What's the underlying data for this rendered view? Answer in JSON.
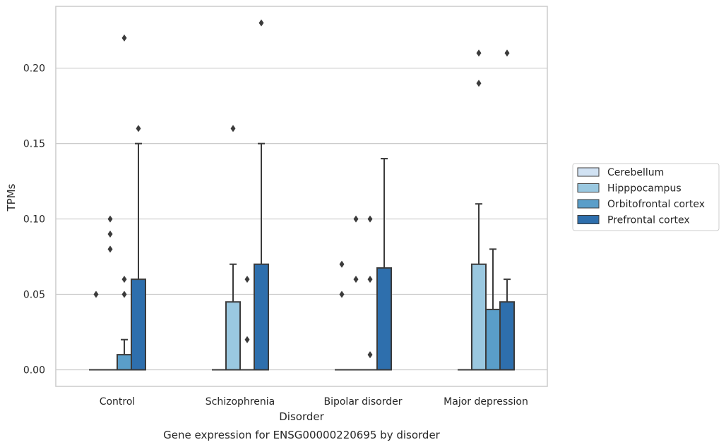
{
  "chart_data": {
    "type": "box",
    "title": "Gene expression for ENSG00000220695 by disorder",
    "xlabel": "Disorder",
    "ylabel": "TPMs",
    "ylim": [
      -0.011,
      0.241
    ],
    "yticks": [
      "0.00",
      "0.05",
      "0.10",
      "0.15",
      "0.20"
    ],
    "grid": true,
    "legend_position": "right",
    "categories": [
      "Control",
      "Schizophrenia",
      "Bipolar disorder",
      "Major depression"
    ],
    "series": [
      {
        "name": "Cerebellum",
        "color": "#d1e2f3",
        "boxes": [
          {
            "q1": 0,
            "median": 0,
            "q3": 0,
            "whisker_low": 0,
            "whisker_high": 0,
            "outliers": [
              0.05
            ]
          },
          {
            "q1": 0,
            "median": 0,
            "q3": 0,
            "whisker_low": 0,
            "whisker_high": 0,
            "outliers": []
          },
          {
            "q1": 0,
            "median": 0,
            "q3": 0,
            "whisker_low": 0,
            "whisker_high": 0,
            "outliers": [
              0.07,
              0.05
            ]
          },
          {
            "q1": 0,
            "median": 0,
            "q3": 0,
            "whisker_low": 0,
            "whisker_high": 0,
            "outliers": []
          }
        ]
      },
      {
        "name": "Hipppocampus",
        "color": "#9ac8e0",
        "boxes": [
          {
            "q1": 0,
            "median": 0,
            "q3": 0,
            "whisker_low": 0,
            "whisker_high": 0,
            "outliers": [
              0.1,
              0.09,
              0.08
            ]
          },
          {
            "q1": 0,
            "median": 0,
            "q3": 0.045,
            "whisker_low": 0,
            "whisker_high": 0.07,
            "outliers": [
              0.16
            ]
          },
          {
            "q1": 0,
            "median": 0,
            "q3": 0,
            "whisker_low": 0,
            "whisker_high": 0,
            "outliers": [
              0.1,
              0.06
            ]
          },
          {
            "q1": 0,
            "median": 0,
            "q3": 0.07,
            "whisker_low": 0,
            "whisker_high": 0.11,
            "outliers": [
              0.21,
              0.19
            ]
          }
        ]
      },
      {
        "name": "Orbitofrontal cortex",
        "color": "#5a9ec9",
        "boxes": [
          {
            "q1": 0,
            "median": 0,
            "q3": 0.01,
            "whisker_low": 0,
            "whisker_high": 0.02,
            "outliers": [
              0.22,
              0.06,
              0.05
            ]
          },
          {
            "q1": 0,
            "median": 0,
            "q3": 0,
            "whisker_low": 0,
            "whisker_high": 0,
            "outliers": [
              0.06,
              0.02
            ]
          },
          {
            "q1": 0,
            "median": 0,
            "q3": 0,
            "whisker_low": 0,
            "whisker_high": 0,
            "outliers": [
              0.1,
              0.06,
              0.01
            ]
          },
          {
            "q1": 0,
            "median": 0,
            "q3": 0.04,
            "whisker_low": 0,
            "whisker_high": 0.08,
            "outliers": []
          }
        ]
      },
      {
        "name": "Prefrontal cortex",
        "color": "#2e6fad",
        "boxes": [
          {
            "q1": 0,
            "median": 0,
            "q3": 0.06,
            "whisker_low": 0,
            "whisker_high": 0.15,
            "outliers": [
              0.16
            ]
          },
          {
            "q1": 0,
            "median": 0,
            "q3": 0.07,
            "whisker_low": 0,
            "whisker_high": 0.15,
            "outliers": [
              0.23
            ]
          },
          {
            "q1": 0,
            "median": 0,
            "q3": 0.0675,
            "whisker_low": 0,
            "whisker_high": 0.14,
            "outliers": []
          },
          {
            "q1": 0,
            "median": 0,
            "q3": 0.045,
            "whisker_low": 0,
            "whisker_high": 0.06,
            "outliers": [
              0.21
            ]
          }
        ]
      }
    ]
  },
  "colors": {
    "grid": "#cccccc",
    "frame": "#cccccc",
    "box_edge": "#3b3b3b",
    "text": "#262626"
  }
}
